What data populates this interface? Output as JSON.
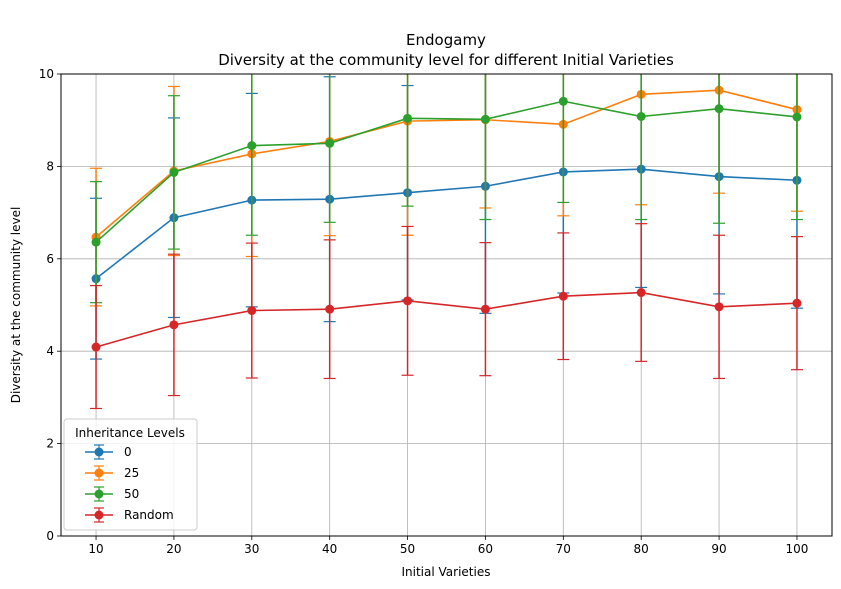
{
  "chart_data": {
    "type": "line",
    "title": "Endogamy",
    "subtitle": "Diversity at the community level for different Initial Varieties",
    "xlabel": "Initial Varieties",
    "ylabel": "Diversity at the community level",
    "x": [
      10,
      20,
      30,
      40,
      50,
      60,
      70,
      80,
      90,
      100
    ],
    "xticks": [
      "10",
      "20",
      "30",
      "40",
      "50",
      "60",
      "70",
      "80",
      "90",
      "100"
    ],
    "yticks": [
      "0",
      "2",
      "4",
      "6",
      "8",
      "10"
    ],
    "xlim": [
      5.5,
      104.5
    ],
    "ylim": [
      0,
      10
    ],
    "grid": true,
    "legend": {
      "title": "Inheritance Levels",
      "placement": "lower-left"
    },
    "series": [
      {
        "name": "0",
        "color": "#1f77b4",
        "values": [
          5.57,
          6.89,
          7.27,
          7.29,
          7.43,
          7.57,
          7.88,
          7.94,
          7.78,
          7.7
        ],
        "errors": [
          1.74,
          2.16,
          2.31,
          2.65,
          2.32,
          2.75,
          2.62,
          2.56,
          2.54,
          2.77
        ]
      },
      {
        "name": "25",
        "color": "#ff7f0e",
        "values": [
          6.47,
          7.9,
          8.27,
          8.54,
          8.98,
          9.01,
          8.91,
          9.56,
          9.65,
          9.23
        ],
        "errors": [
          1.49,
          1.83,
          2.22,
          2.04,
          2.47,
          1.91,
          1.98,
          2.39,
          2.23,
          2.2
        ]
      },
      {
        "name": "50",
        "color": "#2ca02c",
        "values": [
          6.36,
          7.87,
          8.45,
          8.5,
          9.04,
          9.02,
          9.41,
          9.08,
          9.25,
          9.07
        ],
        "errors": [
          1.31,
          1.66,
          1.94,
          1.71,
          1.9,
          2.17,
          2.19,
          2.23,
          2.48,
          2.22
        ]
      },
      {
        "name": "Random",
        "color": "#d62728",
        "values": [
          4.09,
          4.57,
          4.88,
          4.91,
          5.09,
          4.91,
          5.19,
          5.27,
          4.96,
          5.04
        ],
        "errors": [
          1.33,
          1.53,
          1.46,
          1.5,
          1.61,
          1.44,
          1.37,
          1.49,
          1.55,
          1.44
        ]
      }
    ]
  }
}
